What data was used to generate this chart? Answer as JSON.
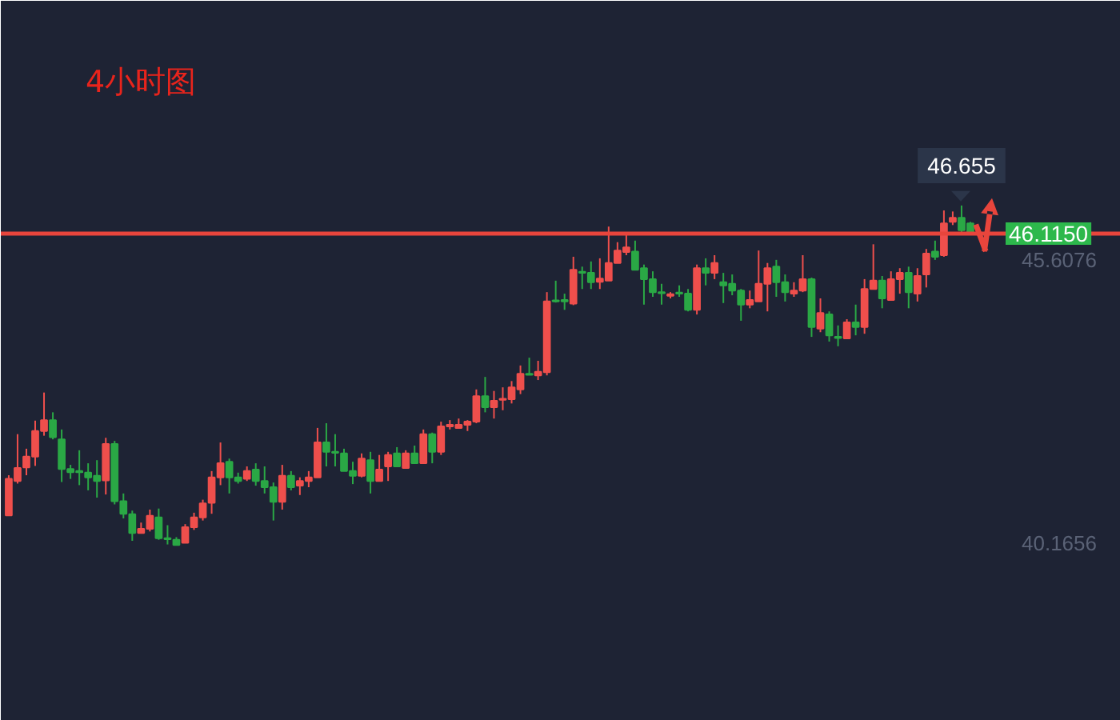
{
  "chart_data": {
    "type": "candlestick",
    "title": "4小时图",
    "categories": [
      null,
      null,
      null,
      null,
      null,
      null,
      null,
      null,
      null,
      null,
      null,
      null,
      null,
      null,
      null,
      null,
      null,
      null,
      null,
      null,
      null,
      null,
      null,
      null,
      null,
      null,
      null,
      null,
      null,
      null,
      null,
      null,
      null,
      null,
      null,
      null,
      null,
      null,
      null,
      null,
      null,
      null,
      null,
      null,
      null,
      null,
      null,
      null,
      null,
      null,
      null,
      null,
      null,
      null,
      null,
      null,
      null,
      null,
      null,
      null,
      null,
      null,
      null,
      null,
      null,
      null,
      null,
      null,
      null,
      null,
      null,
      null,
      null,
      null,
      null,
      null,
      null,
      null,
      null,
      null,
      null,
      null,
      null,
      null,
      null,
      null,
      null,
      null,
      null,
      null,
      null,
      null,
      null,
      null,
      null,
      null,
      null,
      null,
      null,
      null,
      null,
      null,
      null,
      null,
      null,
      null,
      null,
      null,
      null,
      null
    ],
    "ohlc": [
      [
        40.7,
        41.47,
        40.7,
        41.4
      ],
      [
        41.36,
        42.26,
        41.31,
        41.61
      ],
      [
        41.62,
        41.98,
        41.47,
        41.83
      ],
      [
        41.83,
        42.52,
        41.65,
        42.32
      ],
      [
        42.32,
        43.06,
        42.23,
        42.53
      ],
      [
        42.53,
        42.68,
        42.16,
        42.2
      ],
      [
        42.16,
        42.35,
        41.34,
        41.59
      ],
      [
        41.59,
        41.67,
        41.4,
        41.53
      ],
      [
        41.55,
        41.95,
        41.28,
        41.53
      ],
      [
        41.52,
        41.7,
        41.18,
        41.43
      ],
      [
        41.46,
        41.76,
        41.04,
        41.36
      ],
      [
        41.37,
        42.19,
        41.1,
        42.07
      ],
      [
        42.07,
        42.13,
        40.91,
        40.97
      ],
      [
        40.97,
        41.12,
        40.64,
        40.73
      ],
      [
        40.72,
        40.79,
        40.21,
        40.36
      ],
      [
        40.36,
        40.56,
        40.35,
        40.44
      ],
      [
        40.44,
        40.81,
        40.39,
        40.69
      ],
      [
        40.66,
        40.83,
        40.23,
        40.26
      ],
      [
        40.26,
        40.51,
        40.14,
        40.24
      ],
      [
        40.23,
        40.28,
        40.13,
        40.13
      ],
      [
        40.17,
        40.53,
        40.17,
        40.47
      ],
      [
        40.47,
        40.75,
        40.42,
        40.66
      ],
      [
        40.66,
        41.0,
        40.6,
        40.93
      ],
      [
        40.94,
        41.55,
        40.73,
        41.43
      ],
      [
        41.43,
        42.1,
        41.28,
        41.7
      ],
      [
        41.73,
        41.79,
        41.12,
        41.43
      ],
      [
        41.43,
        41.52,
        41.31,
        41.36
      ],
      [
        41.4,
        41.64,
        41.36,
        41.55
      ],
      [
        41.58,
        41.7,
        41.27,
        41.36
      ],
      [
        41.36,
        41.64,
        41.12,
        41.24
      ],
      [
        41.24,
        41.33,
        40.6,
        40.96
      ],
      [
        40.96,
        41.67,
        40.81,
        41.46
      ],
      [
        41.46,
        41.55,
        41.18,
        41.24
      ],
      [
        41.27,
        41.43,
        41.09,
        41.36
      ],
      [
        41.36,
        41.55,
        41.24,
        41.43
      ],
      [
        41.43,
        42.38,
        41.43,
        42.1
      ],
      [
        42.1,
        42.47,
        41.64,
        41.92
      ],
      [
        41.92,
        42.26,
        41.64,
        41.9
      ],
      [
        41.89,
        41.98,
        41.55,
        41.55
      ],
      [
        41.55,
        41.73,
        41.3,
        41.46
      ],
      [
        41.46,
        41.89,
        41.43,
        41.79
      ],
      [
        41.76,
        41.92,
        41.12,
        41.36
      ],
      [
        41.36,
        41.86,
        41.36,
        41.58
      ],
      [
        41.64,
        41.92,
        41.36,
        41.86
      ],
      [
        41.89,
        42.01,
        41.64,
        41.64
      ],
      [
        41.61,
        41.95,
        41.61,
        41.89
      ],
      [
        41.89,
        42.04,
        41.7,
        41.7
      ],
      [
        41.7,
        42.35,
        41.7,
        42.26
      ],
      [
        42.26,
        42.29,
        41.7,
        41.92
      ],
      [
        41.92,
        42.5,
        41.86,
        42.41
      ],
      [
        42.41,
        42.53,
        42.35,
        42.44
      ],
      [
        42.38,
        42.56,
        42.38,
        42.44
      ],
      [
        42.44,
        42.53,
        42.32,
        42.5
      ],
      [
        42.5,
        43.12,
        42.47,
        42.99
      ],
      [
        42.99,
        43.36,
        42.68,
        42.78
      ],
      [
        42.78,
        43.09,
        42.56,
        42.9
      ],
      [
        42.92,
        43.16,
        42.72,
        42.94
      ],
      [
        42.93,
        43.28,
        42.85,
        43.16
      ],
      [
        43.12,
        43.58,
        43.03,
        43.42
      ],
      [
        43.42,
        43.73,
        43.4,
        43.4
      ],
      [
        43.39,
        43.67,
        43.3,
        43.46
      ],
      [
        43.45,
        44.99,
        43.39,
        44.81
      ],
      [
        44.83,
        45.21,
        44.79,
        44.81
      ],
      [
        44.84,
        44.96,
        44.65,
        44.81
      ],
      [
        44.77,
        45.67,
        44.74,
        45.42
      ],
      [
        45.38,
        45.48,
        45.05,
        45.36
      ],
      [
        45.36,
        45.58,
        45.05,
        45.18
      ],
      [
        45.19,
        45.64,
        45.05,
        45.25
      ],
      [
        45.21,
        46.25,
        45.21,
        45.55
      ],
      [
        45.55,
        45.95,
        45.55,
        45.79
      ],
      [
        45.76,
        46.1,
        45.7,
        45.85
      ],
      [
        45.77,
        45.98,
        45.42,
        45.42
      ],
      [
        45.45,
        45.52,
        44.75,
        45.24
      ],
      [
        45.24,
        45.39,
        44.9,
        44.99
      ],
      [
        44.99,
        45.15,
        44.75,
        44.97
      ],
      [
        44.92,
        44.99,
        44.87,
        44.95
      ],
      [
        44.98,
        45.12,
        44.9,
        44.96
      ],
      [
        44.96,
        45.05,
        44.62,
        44.65
      ],
      [
        44.65,
        45.52,
        44.56,
        45.45
      ],
      [
        45.45,
        45.64,
        45.12,
        45.36
      ],
      [
        45.36,
        45.7,
        45.24,
        45.55
      ],
      [
        45.18,
        45.36,
        44.78,
        45.12
      ],
      [
        45.15,
        45.33,
        44.93,
        45.02
      ],
      [
        45.02,
        45.05,
        44.44,
        44.75
      ],
      [
        44.75,
        45.02,
        44.68,
        44.84
      ],
      [
        44.81,
        45.79,
        44.81,
        45.15
      ],
      [
        45.15,
        45.55,
        44.62,
        45.45
      ],
      [
        45.48,
        45.61,
        44.9,
        45.18
      ],
      [
        45.18,
        45.33,
        44.81,
        44.99
      ],
      [
        44.96,
        45.18,
        44.9,
        45.02
      ],
      [
        45.02,
        45.7,
        44.99,
        45.24
      ],
      [
        45.24,
        45.27,
        44.13,
        44.32
      ],
      [
        44.29,
        44.87,
        44.22,
        44.59
      ],
      [
        44.56,
        44.62,
        44.04,
        44.16
      ],
      [
        44.13,
        44.35,
        43.95,
        44.11
      ],
      [
        44.1,
        44.47,
        44.1,
        44.41
      ],
      [
        44.41,
        44.75,
        44.16,
        44.32
      ],
      [
        44.32,
        45.24,
        44.19,
        45.05
      ],
      [
        45.05,
        45.91,
        45.05,
        45.21
      ],
      [
        45.21,
        45.3,
        44.68,
        44.87
      ],
      [
        44.84,
        45.39,
        44.84,
        45.24
      ],
      [
        45.24,
        45.45,
        44.96,
        45.36
      ],
      [
        45.36,
        45.48,
        44.68,
        44.99
      ],
      [
        44.96,
        45.45,
        44.81,
        45.3
      ],
      [
        45.33,
        45.82,
        45.08,
        45.73
      ],
      [
        45.77,
        45.98,
        45.61,
        45.67
      ],
      [
        45.7,
        46.56,
        45.67,
        46.31
      ],
      [
        46.34,
        46.54,
        46.28,
        46.42
      ],
      [
        46.42,
        46.655,
        46.13,
        46.18
      ],
      [
        46.31,
        46.34,
        46.1,
        46.12
      ]
    ],
    "colors": [
      "#ef4f4c",
      "#ef4f4c",
      "#ef4f4c",
      "#ef4f4c",
      "#ef4f4c",
      "#2aa845",
      "#2aa845",
      "#2aa845",
      "#2aa845",
      "#2aa845",
      "#2aa845",
      "#ef4f4c",
      "#2aa845",
      "#2aa845",
      "#2aa845",
      "#ef4f4c",
      "#ef4f4c",
      "#2aa845",
      "#2aa845",
      "#2aa845",
      "#ef4f4c",
      "#ef4f4c",
      "#ef4f4c",
      "#ef4f4c",
      "#ef4f4c",
      "#2aa845",
      "#2aa845",
      "#ef4f4c",
      "#2aa845",
      "#2aa845",
      "#2aa845",
      "#ef4f4c",
      "#2aa845",
      "#ef4f4c",
      "#ef4f4c",
      "#ef4f4c",
      "#2aa845",
      "#2aa845",
      "#2aa845",
      "#2aa845",
      "#ef4f4c",
      "#2aa845",
      "#ef4f4c",
      "#ef4f4c",
      "#2aa845",
      "#ef4f4c",
      "#2aa845",
      "#ef4f4c",
      "#2aa845",
      "#ef4f4c",
      "#ef4f4c",
      "#ef4f4c",
      "#ef4f4c",
      "#ef4f4c",
      "#2aa845",
      "#ef4f4c",
      "#ef4f4c",
      "#ef4f4c",
      "#ef4f4c",
      "#2aa845",
      "#ef4f4c",
      "#ef4f4c",
      "#2aa845",
      "#2aa845",
      "#ef4f4c",
      "#2aa845",
      "#2aa845",
      "#ef4f4c",
      "#ef4f4c",
      "#ef4f4c",
      "#ef4f4c",
      "#2aa845",
      "#2aa845",
      "#2aa845",
      "#2aa845",
      "#ef4f4c",
      "#2aa845",
      "#2aa845",
      "#ef4f4c",
      "#2aa845",
      "#ef4f4c",
      "#2aa845",
      "#2aa845",
      "#2aa845",
      "#ef4f4c",
      "#ef4f4c",
      "#ef4f4c",
      "#2aa845",
      "#2aa845",
      "#ef4f4c",
      "#ef4f4c",
      "#2aa845",
      "#ef4f4c",
      "#2aa845",
      "#2aa845",
      "#ef4f4c",
      "#2aa845",
      "#ef4f4c",
      "#ef4f4c",
      "#2aa845",
      "#ef4f4c",
      "#ef4f4c",
      "#2aa845",
      "#ef4f4c",
      "#ef4f4c",
      "#2aa845",
      "#ef4f4c",
      "#ef4f4c",
      "#2aa845",
      "#2aa845"
    ],
    "ylim": [
      36.75,
      50.59
    ],
    "yticks": [
      40.1656,
      45.6076
    ],
    "tick_labels": "y",
    "ref_lines": [
      {
        "axis": "y",
        "value": 46.115,
        "label": "46.1150",
        "color": "#e8453c"
      }
    ],
    "annotations": [
      {
        "text": "46.655",
        "y": 46.655
      }
    ]
  }
}
